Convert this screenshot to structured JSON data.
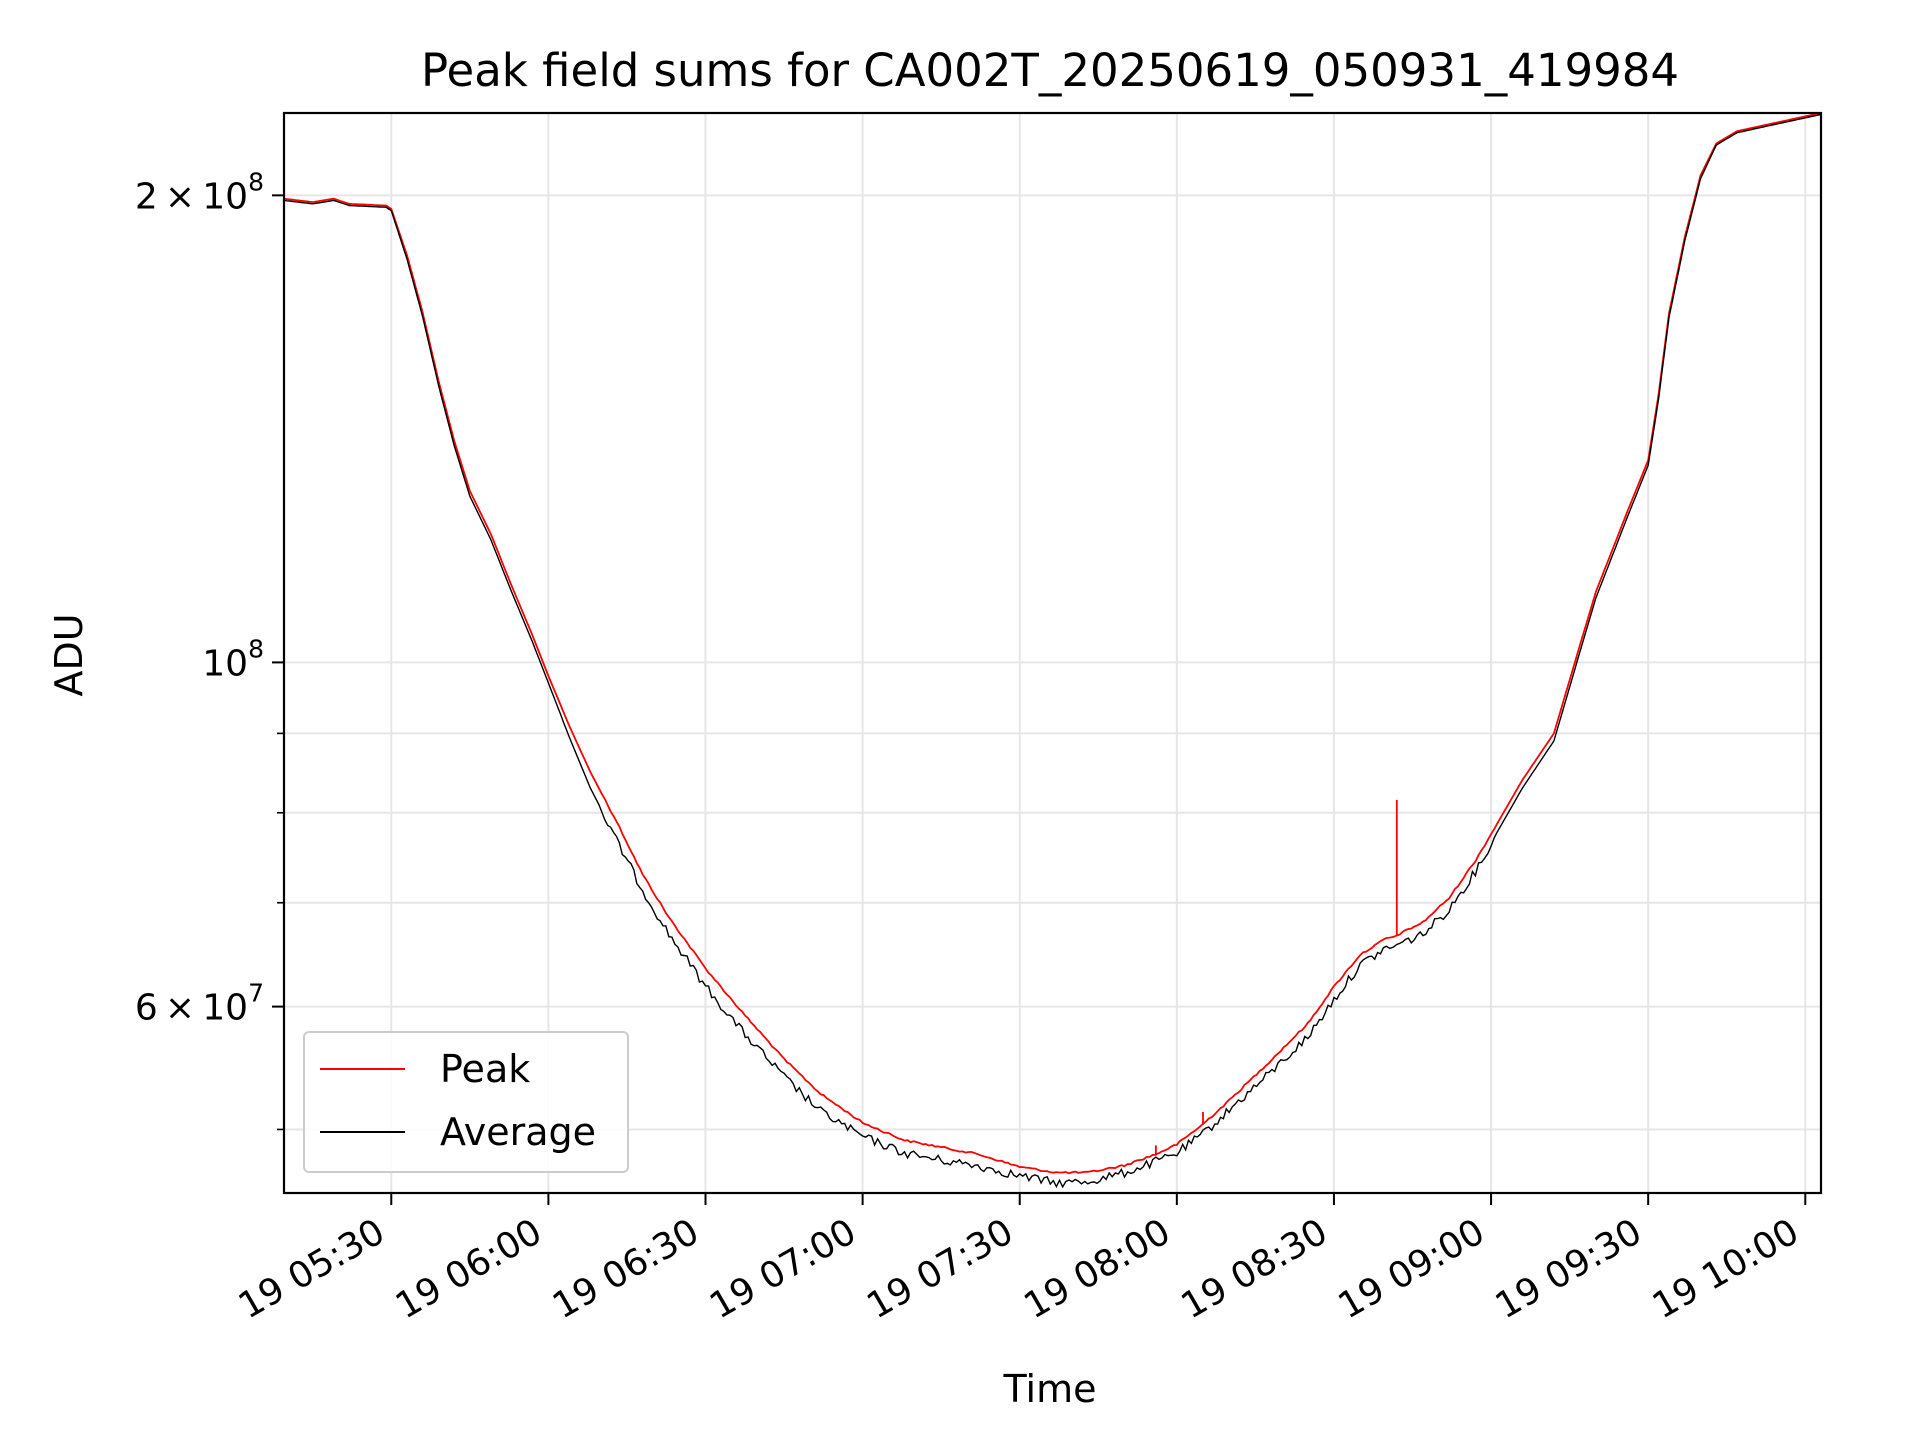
{
  "chart_data": {
    "type": "line",
    "title": "Peak field sums for CA002T_20250619_050931_419984",
    "xlabel": "Time",
    "ylabel": "ADU",
    "xlim": [
      "2025-06-19 05:09:31",
      "2025-06-19 10:03"
    ],
    "ylim": [
      45500000,
      226000000
    ],
    "yscale": "log",
    "grid": true,
    "legend_position": "lower-left",
    "x_ticks": [
      {
        "value": "2025-06-19 05:30",
        "label": "19 05:30"
      },
      {
        "value": "2025-06-19 06:00",
        "label": "19 06:00"
      },
      {
        "value": "2025-06-19 06:30",
        "label": "19 06:30"
      },
      {
        "value": "2025-06-19 07:00",
        "label": "19 07:00"
      },
      {
        "value": "2025-06-19 07:30",
        "label": "19 07:30"
      },
      {
        "value": "2025-06-19 08:00",
        "label": "19 08:00"
      },
      {
        "value": "2025-06-19 08:30",
        "label": "19 08:30"
      },
      {
        "value": "2025-06-19 09:00",
        "label": "19 09:00"
      },
      {
        "value": "2025-06-19 09:30",
        "label": "19 09:30"
      },
      {
        "value": "2025-06-19 10:00",
        "label": "19 10:00"
      }
    ],
    "y_major_ticks": [
      {
        "value": 60000000,
        "mantissa": "6",
        "base": "10",
        "exponent": "7"
      },
      {
        "value": 100000000,
        "mantissa": "",
        "base": "10",
        "exponent": "8"
      },
      {
        "value": 200000000,
        "mantissa": "2",
        "base": "10",
        "exponent": "8"
      }
    ],
    "y_minor_ticks": [
      50000000,
      70000000,
      80000000,
      90000000
    ],
    "series": [
      {
        "name": "Peak",
        "color": "#ff0000",
        "points": [
          [
            "2025-06-19 05:09:31",
            199000000
          ],
          [
            "2025-06-19 05:15",
            198000000
          ],
          [
            "2025-06-19 05:19",
            199000000
          ],
          [
            "2025-06-19 05:22",
            197500000
          ],
          [
            "2025-06-19 05:29",
            197000000
          ],
          [
            "2025-06-19 05:30",
            196000000
          ],
          [
            "2025-06-19 05:33",
            183000000
          ],
          [
            "2025-06-19 05:36",
            168000000
          ],
          [
            "2025-06-19 05:39",
            152000000
          ],
          [
            "2025-06-19 05:42",
            139000000
          ],
          [
            "2025-06-19 05:45",
            129000000
          ],
          [
            "2025-06-19 05:49",
            121000000
          ],
          [
            "2025-06-19 05:53",
            112000000
          ],
          [
            "2025-06-19 05:57",
            104000000
          ],
          [
            "2025-06-19 06:00",
            98000000
          ],
          [
            "2025-06-19 06:04",
            91000000
          ],
          [
            "2025-06-19 06:08",
            85000000
          ],
          [
            "2025-06-19 06:13",
            79000000
          ],
          [
            "2025-06-19 06:18",
            73000000
          ],
          [
            "2025-06-19 06:23",
            68500000
          ],
          [
            "2025-06-19 06:30",
            63500000
          ],
          [
            "2025-06-19 06:37",
            59500000
          ],
          [
            "2025-06-19 06:45",
            55500000
          ],
          [
            "2025-06-19 06:52",
            52700000
          ],
          [
            "2025-06-19 07:00",
            50500000
          ],
          [
            "2025-06-19 07:08",
            49200000
          ],
          [
            "2025-06-19 07:15",
            48700000
          ],
          [
            "2025-06-19 07:22",
            48200000
          ],
          [
            "2025-06-19 07:30",
            47300000
          ],
          [
            "2025-06-19 07:37",
            46900000
          ],
          [
            "2025-06-19 07:43",
            46900000
          ],
          [
            "2025-06-19 07:50",
            47400000
          ],
          [
            "2025-06-19 07:56",
            48200000
          ],
          [
            "2025-06-19 07:56",
            48800000
          ],
          [
            "2025-06-19 07:56",
            48200000
          ],
          [
            "2025-06-19 08:00",
            48900000
          ],
          [
            "2025-06-19 08:05",
            50400000
          ],
          [
            "2025-06-19 08:05",
            51300000
          ],
          [
            "2025-06-19 08:05",
            50400000
          ],
          [
            "2025-06-19 08:10",
            52200000
          ],
          [
            "2025-06-19 08:17",
            55000000
          ],
          [
            "2025-06-19 08:25",
            58500000
          ],
          [
            "2025-06-19 08:30",
            61800000
          ],
          [
            "2025-06-19 08:35",
            64800000
          ],
          [
            "2025-06-19 08:40",
            66400000
          ],
          [
            "2025-06-19 08:42",
            66600000
          ],
          [
            "2025-06-19 08:42",
            81500000
          ],
          [
            "2025-06-19 08:42",
            66700000
          ],
          [
            "2025-06-19 08:47",
            68000000
          ],
          [
            "2025-06-19 08:52",
            70500000
          ],
          [
            "2025-06-19 08:57",
            74500000
          ],
          [
            "2025-06-19 09:00",
            77500000
          ],
          [
            "2025-06-19 09:06",
            84000000
          ],
          [
            "2025-06-19 09:12",
            90000000
          ],
          [
            "2025-06-19 09:16",
            100000000
          ],
          [
            "2025-06-19 09:20",
            111000000
          ],
          [
            "2025-06-19 09:26",
            125000000
          ],
          [
            "2025-06-19 09:30",
            135000000
          ],
          [
            "2025-06-19 09:32",
            149000000
          ],
          [
            "2025-06-19 09:34",
            168000000
          ],
          [
            "2025-06-19 09:37",
            188000000
          ],
          [
            "2025-06-19 09:40",
            206000000
          ],
          [
            "2025-06-19 09:43",
            216000000
          ],
          [
            "2025-06-19 09:47",
            220000000
          ],
          [
            "2025-06-19 09:55",
            223000000
          ],
          [
            "2025-06-19 10:03",
            226000000
          ]
        ]
      },
      {
        "name": "Average",
        "color": "#000000",
        "points": [
          [
            "2025-06-19 05:09:31",
            198500000
          ],
          [
            "2025-06-19 05:15",
            197500000
          ],
          [
            "2025-06-19 05:19",
            198500000
          ],
          [
            "2025-06-19 05:22",
            197000000
          ],
          [
            "2025-06-19 05:29",
            196500000
          ],
          [
            "2025-06-19 05:30",
            195500000
          ],
          [
            "2025-06-19 05:33",
            182000000
          ],
          [
            "2025-06-19 05:36",
            167000000
          ],
          [
            "2025-06-19 05:39",
            151000000
          ],
          [
            "2025-06-19 05:42",
            138000000
          ],
          [
            "2025-06-19 05:45",
            128000000
          ],
          [
            "2025-06-19 05:49",
            120000000
          ],
          [
            "2025-06-19 05:53",
            111000000
          ],
          [
            "2025-06-19 05:57",
            103000000
          ],
          [
            "2025-06-19 06:00",
            97000000
          ],
          [
            "2025-06-19 06:04",
            89500000
          ],
          [
            "2025-06-19 06:08",
            83000000
          ],
          [
            "2025-06-19 06:13",
            77000000
          ],
          [
            "2025-06-19 06:18",
            71500000
          ],
          [
            "2025-06-19 06:23",
            67000000
          ],
          [
            "2025-06-19 06:30",
            62000000
          ],
          [
            "2025-06-19 06:37",
            58000000
          ],
          [
            "2025-06-19 06:45",
            54200000
          ],
          [
            "2025-06-19 06:52",
            51500000
          ],
          [
            "2025-06-19 07:00",
            49600000
          ],
          [
            "2025-06-19 07:08",
            48400000
          ],
          [
            "2025-06-19 07:15",
            47900000
          ],
          [
            "2025-06-19 07:22",
            47500000
          ],
          [
            "2025-06-19 07:30",
            46800000
          ],
          [
            "2025-06-19 07:37",
            46300000
          ],
          [
            "2025-06-19 07:43",
            46400000
          ],
          [
            "2025-06-19 07:50",
            47000000
          ],
          [
            "2025-06-19 07:56",
            47800000
          ],
          [
            "2025-06-19 08:00",
            48400000
          ],
          [
            "2025-06-19 08:05",
            49800000
          ],
          [
            "2025-06-19 08:10",
            51600000
          ],
          [
            "2025-06-19 08:17",
            54200000
          ],
          [
            "2025-06-19 08:25",
            57500000
          ],
          [
            "2025-06-19 08:30",
            60800000
          ],
          [
            "2025-06-19 08:35",
            64000000
          ],
          [
            "2025-06-19 08:40",
            65600000
          ],
          [
            "2025-06-19 08:42",
            65900000
          ],
          [
            "2025-06-19 08:47",
            67000000
          ],
          [
            "2025-06-19 08:52",
            69500000
          ],
          [
            "2025-06-19 08:57",
            73500000
          ],
          [
            "2025-06-19 09:00",
            76500000
          ],
          [
            "2025-06-19 09:06",
            83000000
          ],
          [
            "2025-06-19 09:12",
            89000000
          ],
          [
            "2025-06-19 09:16",
            99000000
          ],
          [
            "2025-06-19 09:20",
            110000000
          ],
          [
            "2025-06-19 09:26",
            124000000
          ],
          [
            "2025-06-19 09:30",
            134000000
          ],
          [
            "2025-06-19 09:32",
            148000000
          ],
          [
            "2025-06-19 09:34",
            167000000
          ],
          [
            "2025-06-19 09:37",
            187000000
          ],
          [
            "2025-06-19 09:40",
            205000000
          ],
          [
            "2025-06-19 09:43",
            215500000
          ],
          [
            "2025-06-19 09:47",
            219500000
          ],
          [
            "2025-06-19 09:55",
            222500000
          ],
          [
            "2025-06-19 10:03",
            225500000
          ]
        ]
      }
    ]
  }
}
